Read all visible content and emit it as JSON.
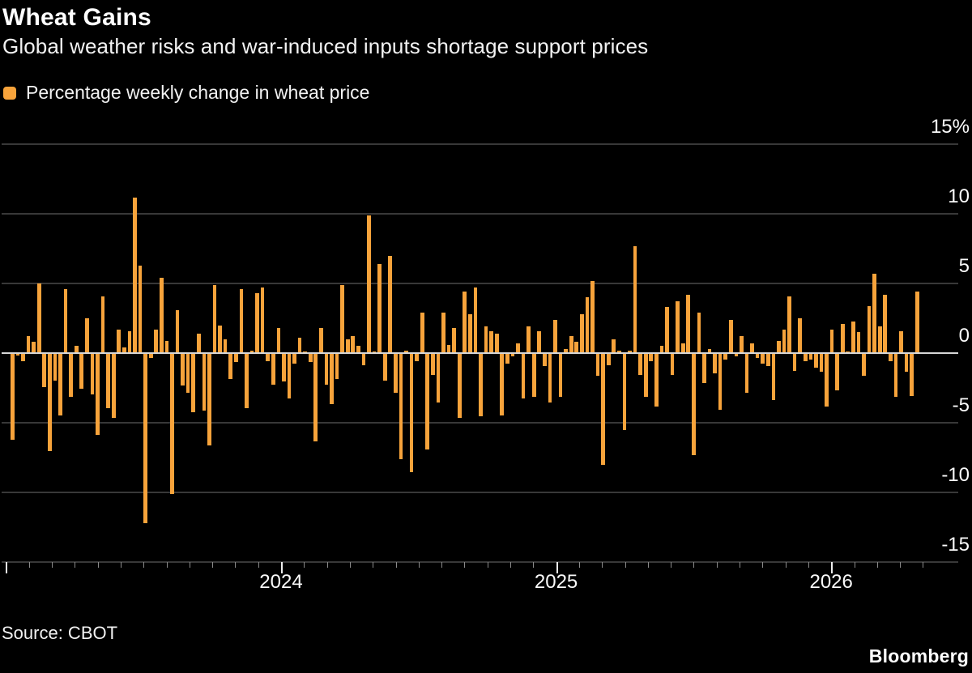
{
  "header": {
    "title": "Wheat Gains",
    "subtitle": "Global weather risks and war-induced inputs shortage support prices"
  },
  "legend": {
    "label": "Percentage weekly change in wheat price",
    "swatch_color": "#F7A33B"
  },
  "footer": {
    "source": "Source: CBOT",
    "brand": "Bloomberg"
  },
  "colors": {
    "background": "#000000",
    "bar": "#F7A33B",
    "gridline": "#383838",
    "zero_line": "#d6d6d6",
    "text": "#ffffff"
  },
  "chart_data": {
    "type": "bar",
    "title": "Wheat Gains",
    "series_name": "Percentage weekly change in wheat price",
    "unit": "%",
    "frequency": "weekly",
    "grid": "on",
    "legend_position": "top-left",
    "y_axis_side": "right",
    "ylim": [
      -15,
      15
    ],
    "y_ticks": [
      {
        "label": "15%",
        "value": 15
      },
      {
        "label": "10",
        "value": 10
      },
      {
        "label": "5",
        "value": 5
      },
      {
        "label": "0",
        "value": 0
      },
      {
        "label": "-5",
        "value": -5
      },
      {
        "label": "-10",
        "value": -10
      },
      {
        "label": "-15",
        "value": -15
      }
    ],
    "x_year_labels": [
      "2024",
      "2025",
      "2026"
    ],
    "values": [
      -6.2,
      -0.1,
      -0.5,
      1.2,
      0.8,
      5.0,
      -2.4,
      -7.0,
      -1.9,
      -4.4,
      4.6,
      -3.1,
      0.5,
      -2.5,
      2.5,
      -2.9,
      -5.8,
      4.1,
      -3.9,
      -4.6,
      1.7,
      0.4,
      1.6,
      11.2,
      6.3,
      -12.2,
      -0.3,
      1.7,
      5.4,
      0.9,
      -10.1,
      3.1,
      -2.3,
      -2.8,
      -4.2,
      1.4,
      -4.1,
      -6.6,
      4.9,
      2.0,
      1.0,
      -1.8,
      -0.6,
      4.6,
      -3.9,
      0.2,
      4.3,
      4.7,
      -0.5,
      -2.2,
      1.8,
      -2.0,
      -3.2,
      -0.7,
      1.1,
      0.1,
      -0.6,
      -6.3,
      1.8,
      -2.2,
      -3.6,
      -1.8,
      4.9,
      1.0,
      1.2,
      0.5,
      -0.8,
      9.9,
      0.1,
      6.4,
      -1.9,
      7.0,
      -2.8,
      -7.6,
      0.2,
      -8.5,
      -0.5,
      2.9,
      -6.9,
      -1.5,
      -3.5,
      2.9,
      0.6,
      1.8,
      -4.6,
      4.4,
      2.8,
      4.7,
      -4.5,
      1.9,
      1.6,
      1.4,
      -4.4,
      -0.7,
      -0.2,
      0.7,
      -3.2,
      1.9,
      -3.1,
      1.6,
      -0.9,
      -3.5,
      2.4,
      -3.1,
      0.3,
      1.2,
      0.8,
      2.8,
      4.0,
      5.2,
      -1.6,
      -8.0,
      -0.8,
      1.0,
      0.2,
      -5.5,
      0.2,
      7.7,
      -1.5,
      -3.1,
      -0.5,
      -3.8,
      0.5,
      3.3,
      -1.5,
      3.7,
      0.7,
      4.2,
      -7.3,
      2.9,
      -2.1,
      0.3,
      -1.4,
      -4.0,
      -0.4,
      2.4,
      -0.2,
      1.2,
      -2.8,
      0.7,
      -0.3,
      -0.7,
      -0.9,
      -3.3,
      0.9,
      1.7,
      4.1,
      -1.2,
      2.5,
      -0.5,
      -0.4,
      -1.0,
      -1.3,
      -3.8,
      1.7,
      -2.6,
      2.1,
      0.1,
      2.3,
      1.5,
      -1.6,
      3.4,
      5.7,
      1.9,
      4.2,
      -0.5,
      -3.1,
      1.6,
      -1.3,
      -3.0,
      4.4
    ]
  }
}
